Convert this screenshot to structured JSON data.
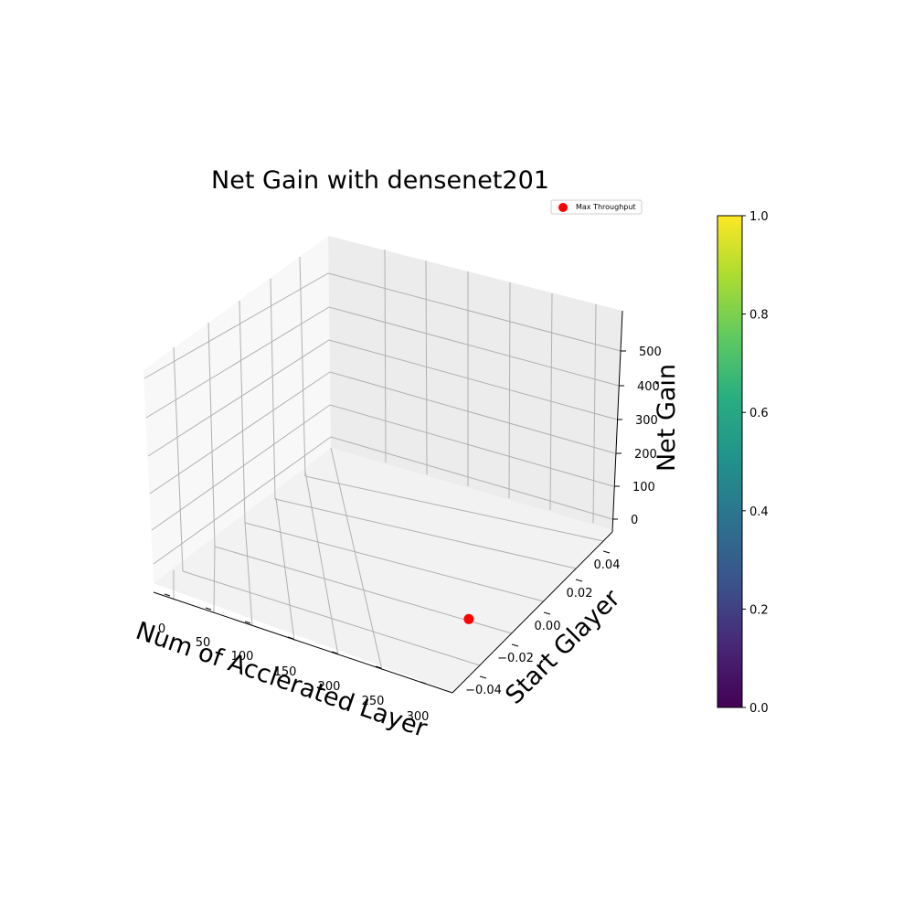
{
  "chart_data": {
    "type": "scatter",
    "projection": "3d",
    "title": "Net Gain with densenet201",
    "xlabel": "Num of Acclerated Layer",
    "ylabel": "Start Glayer",
    "zlabel": "Net Gain",
    "x_ticks": [
      "0",
      "50",
      "100",
      "150",
      "200",
      "250",
      "300"
    ],
    "y_ticks": [
      "−0.04",
      "−0.02",
      "0.00",
      "0.02",
      "0.04"
    ],
    "z_ticks": [
      "0",
      "100",
      "200",
      "300",
      "400",
      "500"
    ],
    "xlim": [
      -10,
      330
    ],
    "ylim": [
      -0.055,
      0.055
    ],
    "zlim": [
      -30,
      600
    ],
    "grid": true,
    "legend": {
      "placement": "top-right",
      "entries": [
        {
          "label": "Max Throughput",
          "color": "#ff0000"
        }
      ]
    },
    "series": [
      {
        "name": "Max Throughput",
        "color": "#ff0000",
        "points": [
          {
            "x": 265,
            "y": 0.0,
            "z": 0
          }
        ]
      }
    ],
    "colorbar": {
      "colormap": "viridis",
      "range": [
        0.0,
        1.0
      ],
      "ticks": [
        "0.0",
        "0.2",
        "0.4",
        "0.6",
        "0.8",
        "1.0"
      ]
    }
  }
}
